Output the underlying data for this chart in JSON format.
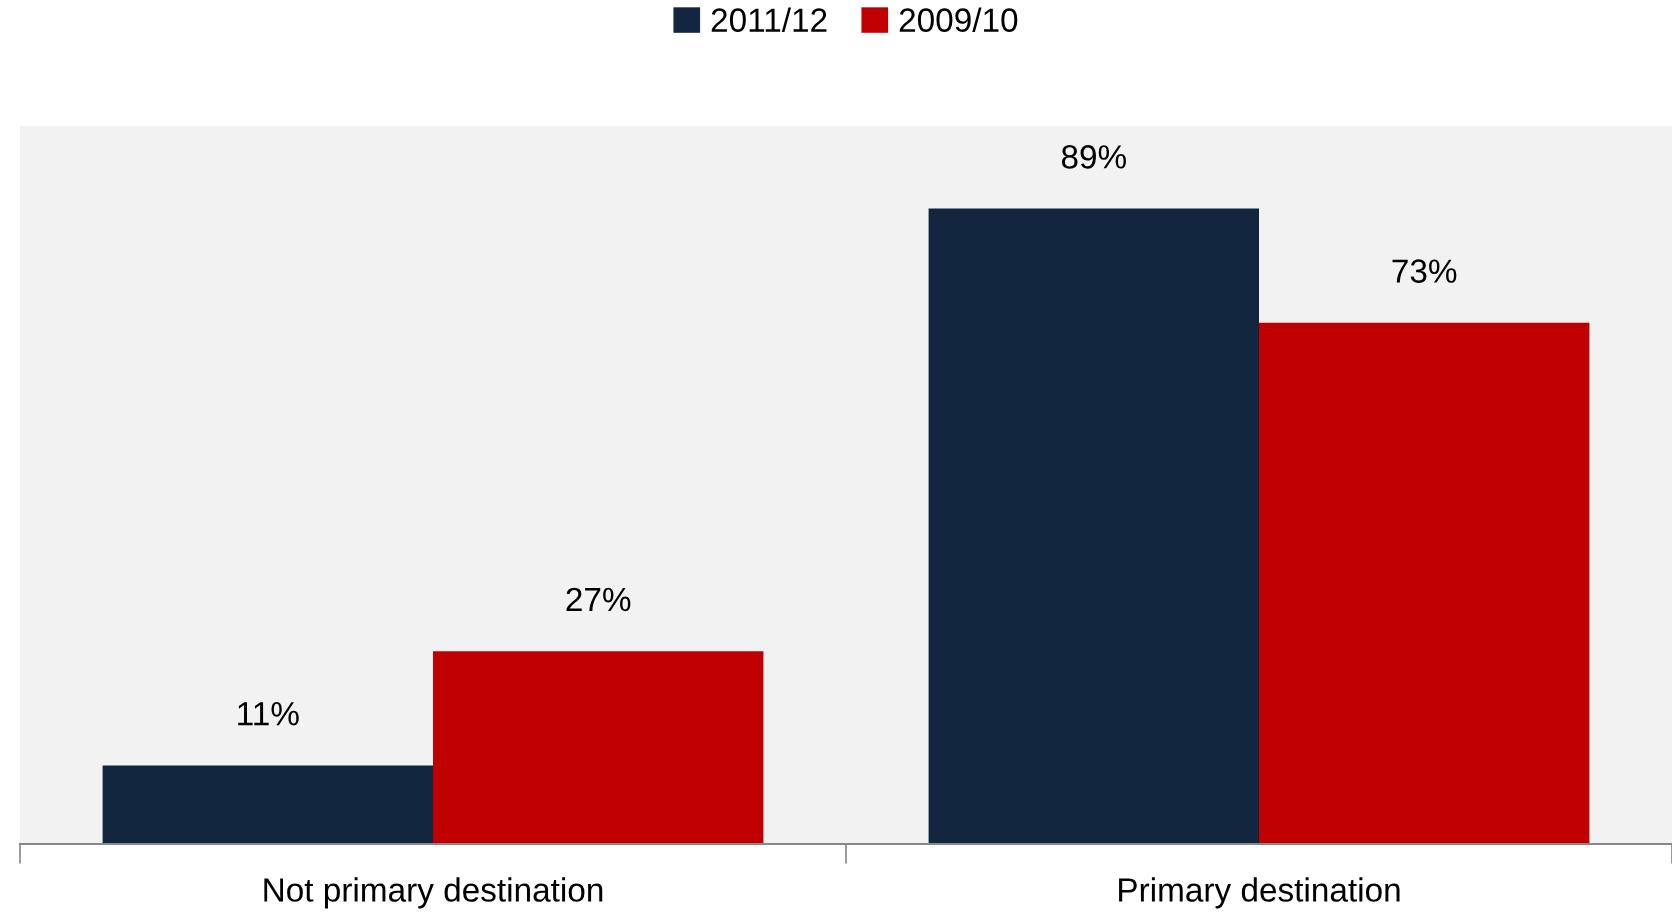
{
  "chart_data": {
    "type": "bar",
    "categories": [
      "Not primary destination",
      "Primary destination"
    ],
    "series": [
      {
        "name": "2011/12",
        "color": "#12263f",
        "values": [
          11,
          89
        ],
        "value_labels": [
          "11%",
          "89%"
        ]
      },
      {
        "name": "2009/10",
        "color": "#c00000",
        "values": [
          27,
          73
        ],
        "value_labels": [
          "27%",
          "73%"
        ]
      }
    ],
    "legend": "top",
    "grid": false
  }
}
